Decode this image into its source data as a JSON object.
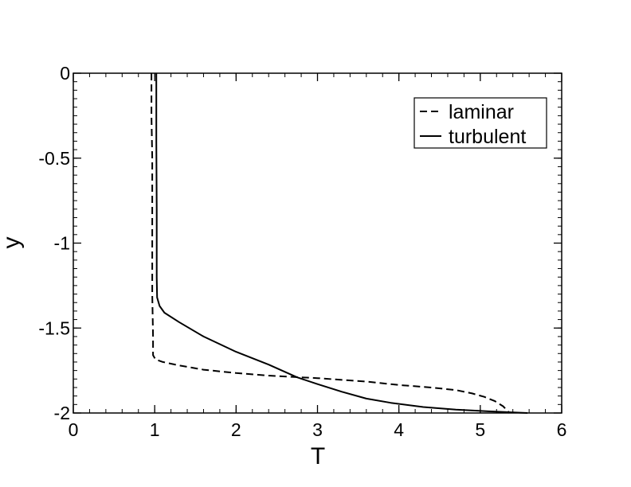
{
  "chart_data": {
    "type": "line",
    "xlabel": "T",
    "ylabel": "y",
    "xlim": [
      0,
      6
    ],
    "ylim": [
      -2,
      0
    ],
    "xticks": [
      0,
      1,
      2,
      3,
      4,
      5,
      6
    ],
    "yticks": [
      0,
      -0.5,
      -1,
      -1.5,
      -2
    ],
    "x_tick_labels": [
      "0",
      "1",
      "2",
      "3",
      "4",
      "5",
      "6"
    ],
    "y_tick_labels": [
      "0",
      "-0.5",
      "-1",
      "-1.5",
      "-2"
    ],
    "x_minor_step": 0.2,
    "y_minor_step": 0.05,
    "grid": false,
    "legend_position": "top-right",
    "series": [
      {
        "name": "laminar",
        "style": "dashed",
        "color": "#000000",
        "points": [
          [
            0.96,
            0.0
          ],
          [
            0.96,
            -0.25
          ],
          [
            0.97,
            -0.5
          ],
          [
            0.97,
            -1.0
          ],
          [
            0.97,
            -1.3
          ],
          [
            0.98,
            -1.55
          ],
          [
            0.98,
            -1.66
          ],
          [
            1.01,
            -1.685
          ],
          [
            1.1,
            -1.7
          ],
          [
            1.3,
            -1.72
          ],
          [
            1.6,
            -1.745
          ],
          [
            2.0,
            -1.765
          ],
          [
            2.4,
            -1.78
          ],
          [
            2.8,
            -1.79
          ],
          [
            3.0,
            -1.795
          ],
          [
            3.3,
            -1.805
          ],
          [
            3.6,
            -1.815
          ],
          [
            4.0,
            -1.835
          ],
          [
            4.4,
            -1.85
          ],
          [
            4.7,
            -1.865
          ],
          [
            4.9,
            -1.885
          ],
          [
            5.05,
            -1.905
          ],
          [
            5.18,
            -1.93
          ],
          [
            5.28,
            -1.96
          ],
          [
            5.36,
            -2.0
          ]
        ]
      },
      {
        "name": "turbulent",
        "style": "solid",
        "color": "#000000",
        "points": [
          [
            1.02,
            0.0
          ],
          [
            1.02,
            -0.4
          ],
          [
            1.025,
            -0.8
          ],
          [
            1.025,
            -1.2
          ],
          [
            1.03,
            -1.32
          ],
          [
            1.06,
            -1.37
          ],
          [
            1.12,
            -1.41
          ],
          [
            1.3,
            -1.465
          ],
          [
            1.6,
            -1.55
          ],
          [
            2.0,
            -1.64
          ],
          [
            2.4,
            -1.715
          ],
          [
            2.75,
            -1.79
          ],
          [
            3.0,
            -1.83
          ],
          [
            3.3,
            -1.875
          ],
          [
            3.6,
            -1.915
          ],
          [
            3.9,
            -1.94
          ],
          [
            4.3,
            -1.965
          ],
          [
            4.7,
            -1.98
          ],
          [
            5.1,
            -1.99
          ],
          [
            5.58,
            -2.0
          ]
        ]
      }
    ]
  }
}
